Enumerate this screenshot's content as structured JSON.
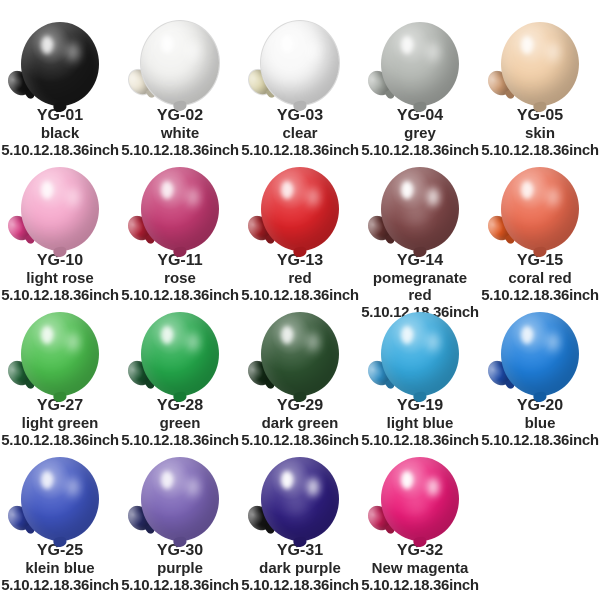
{
  "page": {
    "background": "#ffffff",
    "text_color": "#262626"
  },
  "items": [
    {
      "code": "YG-01",
      "name": "black",
      "sizes": "5.10.12.18.36inch",
      "color": "#1a1a1a",
      "small_color": "#141414"
    },
    {
      "code": "YG-02",
      "name": "white",
      "sizes": "5.10.12.18.36inch",
      "color": "#f2f2f0",
      "small_color": "#ece5d2"
    },
    {
      "code": "YG-03",
      "name": "clear",
      "sizes": "5.10.12.18.36inch",
      "color": "#f8f8f8",
      "small_color": "#ded7ae"
    },
    {
      "code": "YG-04",
      "name": "grey",
      "sizes": "5.10.12.18.36inch",
      "color": "#b4b8b3",
      "small_color": "#a3a8a2"
    },
    {
      "code": "YG-05",
      "name": "skin",
      "sizes": "5.10.12.18.36inch",
      "color": "#f2cfa8",
      "small_color": "#cf9a70"
    },
    {
      "code": "YG-10",
      "name": "light rose",
      "sizes": "5.10.12.18.36inch",
      "color": "#f6a8cc",
      "small_color": "#d6367f"
    },
    {
      "code": "YG-11",
      "name": "rose",
      "sizes": "5.10.12.18.36inch",
      "color": "#c43a72",
      "small_color": "#b01e33"
    },
    {
      "code": "YG-13",
      "name": "red",
      "sizes": "5.10.12.18.36inch",
      "color": "#e02429",
      "small_color": "#a01c22"
    },
    {
      "code": "YG-14",
      "name": "pomegranate red",
      "sizes": "5.10.12.18.36inch",
      "color": "#82494a",
      "small_color": "#63312f"
    },
    {
      "code": "YG-15",
      "name": "coral red",
      "sizes": "5.10.12.18.36inch",
      "color": "#eb6a4e",
      "small_color": "#e1571f"
    },
    {
      "code": "YG-27",
      "name": "light green",
      "sizes": "5.10.12.18.36inch",
      "color": "#4cc04e",
      "small_color": "#1d5e33"
    },
    {
      "code": "YG-28",
      "name": "green",
      "sizes": "5.10.12.18.36inch",
      "color": "#24a94b",
      "small_color": "#17502c"
    },
    {
      "code": "YG-29",
      "name": "dark green",
      "sizes": "5.10.12.18.36inch",
      "color": "#2d5330",
      "small_color": "#132b16"
    },
    {
      "code": "YG-19",
      "name": "light blue",
      "sizes": "5.10.12.18.36inch",
      "color": "#35aadf",
      "small_color": "#2e8ec6"
    },
    {
      "code": "YG-20",
      "name": "blue",
      "sizes": "5.10.12.18.36inch",
      "color": "#1f7fdc",
      "small_color": "#1c49a8"
    },
    {
      "code": "YG-25",
      "name": "klein blue",
      "sizes": "5.10.12.18.36inch",
      "color": "#3f55c2",
      "small_color": "#2a3a9a"
    },
    {
      "code": "YG-30",
      "name": "purple",
      "sizes": "5.10.12.18.36inch",
      "color": "#7b64b6",
      "small_color": "#272a63"
    },
    {
      "code": "YG-31",
      "name": "dark purple",
      "sizes": "5.10.12.18.36inch",
      "color": "#301f82",
      "small_color": "#161616"
    },
    {
      "code": "YG-32",
      "name": "New magenta",
      "sizes": "5.10.12.18.36inch",
      "color": "#ec1a78",
      "small_color": "#c01a52"
    }
  ]
}
